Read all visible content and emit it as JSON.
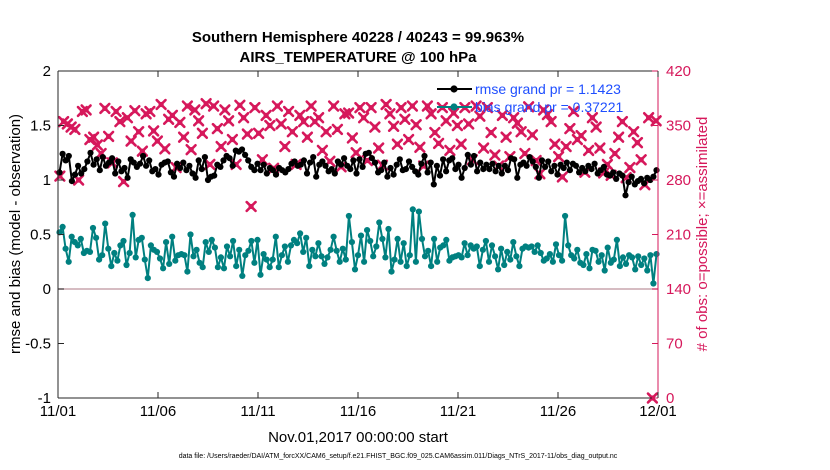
{
  "chart_data": {
    "type": "line",
    "title": "Southern Hemisphere 40228 / 40243 = 99.963%",
    "subtitle": "AIRS_TEMPERATURE @ 100 hPa",
    "xlabel": "Nov.01,2017 00:00:00 start",
    "ylabel_left": "rmse and bias (model - observation)",
    "ylabel_right": "# of obs: o=possible; ×=assimilated",
    "x_tick_labels": [
      "11/01",
      "11/06",
      "11/11",
      "11/16",
      "11/21",
      "11/26",
      "12/01"
    ],
    "x_range_days": [
      0,
      30
    ],
    "ylim_left": [
      -1,
      2
    ],
    "y_ticks_left": [
      "-1",
      "-0.5",
      "0",
      "0.5",
      "1",
      "1.5",
      "2"
    ],
    "ylim_right": [
      0,
      420
    ],
    "y_ticks_right": [
      "0",
      "70",
      "140",
      "210",
      "280",
      "350",
      "420"
    ],
    "grid": false,
    "zero_line": true,
    "legend_position": "top-right",
    "footnote": "data file: /Users/raeder/DAI/ATM_forcXX/CAM6_setup/f.e21.FHIST_BGC.f09_025.CAM6assim.011/Diags_NTrS_2017-11/obs_diag_output.nc",
    "colors": {
      "rmse": "#000000",
      "bias": "#008080",
      "obs": "#d6185b",
      "zero_line": "#c9a5ad",
      "legend_text": "#1f4fff"
    },
    "series": [
      {
        "name": "rmse grand pr = 1.1423",
        "axis": "left",
        "marker": "filled-circle",
        "values": [
          1.07,
          1.24,
          1.18,
          1.22,
          0.99,
          1.05,
          1.13,
          1.06,
          1.1,
          1.17,
          1.25,
          1.14,
          1.19,
          1.09,
          1.21,
          1.13,
          1.16,
          1.2,
          1.06,
          1.17,
          1.08,
          1.11,
          1.02,
          1.19,
          1.16,
          1.12,
          1.15,
          1.22,
          1.13,
          1.18,
          1.08,
          1.1,
          1.05,
          1.14,
          1.16,
          1.17,
          1.07,
          1.03,
          1.15,
          1.11,
          1.16,
          1.09,
          1.13,
          1.06,
          1.02,
          1.18,
          1.1,
          1.21,
          1.0,
          1.03,
          1.04,
          1.14,
          1.12,
          1.18,
          1.22,
          1.2,
          1.13,
          1.27,
          1.26,
          1.28,
          1.23,
          1.18,
          1.12,
          1.09,
          1.15,
          1.09,
          1.14,
          1.06,
          1.11,
          1.09,
          1.05,
          1.11,
          1.09,
          1.07,
          1.1,
          1.15,
          1.17,
          1.13,
          1.14,
          1.18,
          1.06,
          1.16,
          1.21,
          1.03,
          1.14,
          1.17,
          1.13,
          1.08,
          1.1,
          1.06,
          1.17,
          1.14,
          1.2,
          1.13,
          1.1,
          1.18,
          1.06,
          1.19,
          1.12,
          1.24,
          1.25,
          1.2,
          1.16,
          1.07,
          1.09,
          1.16,
          1.03,
          1.11,
          1.05,
          1.14,
          1.19,
          1.09,
          1.1,
          1.17,
          1.12,
          1.08,
          1.05,
          1.15,
          1.22,
          1.07,
          1.16,
          0.96,
          1.13,
          1.04,
          1.19,
          1.08,
          1.18,
          1.2,
          1.1,
          1.14,
          1.02,
          1.11,
          1.23,
          1.14,
          1.22,
          1.08,
          1.16,
          1.1,
          1.14,
          1.1,
          1.15,
          1.08,
          1.13,
          1.06,
          1.13,
          1.09,
          1.2,
          1.19,
          1.02,
          1.14,
          1.16,
          1.13,
          1.21,
          1.17,
          1.12,
          1.02,
          1.18,
          1.12,
          1.17,
          1.08,
          1.13,
          1.05,
          1.14,
          1.11,
          1.16,
          1.09,
          1.15,
          1.13,
          1.07,
          1.11,
          1.08,
          1.13,
          1.1,
          1.15,
          1.06,
          1.09,
          1.12,
          1.05,
          1.04,
          1.07,
          1.01,
          1.06,
          1.04,
          0.86,
          0.98,
          1.03,
          0.96,
          0.99,
          1.01,
          0.97,
          1.02,
          1.0,
          1.03,
          1.09
        ]
      },
      {
        "name": "bias grand pr = 0.37221",
        "axis": "left",
        "marker": "filled-circle",
        "values": [
          0.52,
          0.57,
          0.37,
          0.25,
          0.48,
          0.43,
          0.4,
          0.46,
          0.33,
          0.35,
          0.34,
          0.56,
          0.47,
          0.27,
          0.31,
          0.6,
          0.37,
          0.21,
          0.33,
          0.26,
          0.4,
          0.44,
          0.22,
          0.33,
          0.68,
          0.29,
          0.45,
          0.47,
          0.27,
          0.1,
          0.4,
          0.36,
          0.34,
          0.28,
          0.19,
          0.43,
          0.23,
          0.48,
          0.26,
          0.31,
          0.32,
          0.31,
          0.16,
          0.5,
          0.3,
          0.36,
          0.24,
          0.2,
          0.43,
          0.34,
          0.45,
          0.38,
          0.2,
          0.29,
          0.19,
          0.39,
          0.3,
          0.44,
          0.21,
          0.36,
          0.12,
          0.31,
          0.35,
          0.44,
          0.24,
          0.45,
          0.13,
          0.32,
          0.27,
          0.2,
          0.27,
          0.48,
          0.2,
          0.31,
          0.39,
          0.25,
          0.4,
          0.45,
          0.42,
          0.51,
          0.34,
          0.47,
          0.21,
          0.36,
          0.3,
          0.42,
          0.3,
          0.23,
          0.29,
          0.36,
          0.48,
          0.35,
          0.25,
          0.37,
          0.27,
          0.67,
          0.43,
          0.18,
          0.31,
          0.49,
          0.25,
          0.54,
          0.44,
          0.3,
          0.39,
          0.61,
          0.46,
          0.29,
          0.55,
          0.16,
          0.27,
          0.46,
          0.25,
          0.42,
          0.21,
          0.31,
          0.73,
          0.25,
          0.71,
          0.46,
          0.3,
          0.35,
          0.21,
          0.46,
          0.25,
          0.38,
          0.4,
          0.45,
          0.26,
          0.29,
          0.3,
          0.31,
          0.29,
          0.42,
          0.31,
          0.4,
          0.37,
          0.39,
          0.21,
          0.36,
          0.44,
          0.25,
          0.4,
          0.3,
          0.18,
          0.37,
          0.22,
          0.34,
          0.27,
          0.43,
          0.3,
          0.21,
          0.37,
          0.39,
          0.38,
          0.39,
          0.34,
          0.4,
          0.33,
          0.26,
          0.28,
          0.32,
          0.25,
          0.41,
          0.31,
          0.26,
          0.67,
          0.4,
          0.31,
          0.28,
          0.36,
          0.24,
          0.22,
          0.32,
          0.19,
          0.36,
          0.35,
          0.25,
          0.31,
          0.17,
          0.38,
          0.24,
          0.27,
          0.45,
          0.21,
          0.29,
          0.23,
          0.31,
          0.29,
          0.18,
          0.3,
          0.22,
          0.28,
          0.17,
          0.31,
          0.05,
          0.32
        ]
      },
      {
        "name": "possible",
        "axis": "right",
        "marker": "open-circle",
        "values": []
      },
      {
        "name": "assimilated",
        "axis": "right",
        "marker": "x",
        "values": [
          285,
          355,
          352,
          348,
          345,
          280,
          368,
          370,
          332,
          335,
          325,
          314,
          372,
          336,
          302,
          368,
          355,
          278,
          360,
          330,
          369,
          342,
          317,
          365,
          368,
          343,
          330,
          377,
          320,
          358,
          363,
          296,
          354,
          335,
          375,
          319,
          370,
          356,
          340,
          378,
          300,
          375,
          346,
          323,
          370,
          356,
          332,
          300,
          376,
          360,
          339,
          246,
          373,
          340,
          306,
          363,
          350,
          295,
          375,
          352,
          323,
          368,
          342,
          300,
          363,
          355,
          335,
          375,
          355,
          360,
          318,
          342,
          304,
          375,
          345,
          297,
          365,
          366,
          334,
          315,
          373,
          360,
          305,
          373,
          348,
          321,
          299,
          377,
          365,
          349,
          326,
          373,
          358,
          332,
          375,
          351,
          322,
          298,
          375,
          365,
          341,
          327,
          373,
          356,
          318,
          366,
          350,
          326,
          373,
          352,
          306,
          375,
          362,
          321,
          373,
          341,
          312,
          298,
          363,
          335,
          310,
          360,
          353,
          342,
          314,
          374,
          338,
          305,
          288,
          370,
          364,
          355,
          326,
          310,
          284,
          323,
          346,
          368,
          332,
          337,
          290,
          318,
          360,
          348,
          321,
          289,
          300,
          286,
          314,
          335,
          355,
          283,
          296,
          342,
          328,
          306,
          274,
          360,
          0,
          356
        ]
      }
    ]
  }
}
